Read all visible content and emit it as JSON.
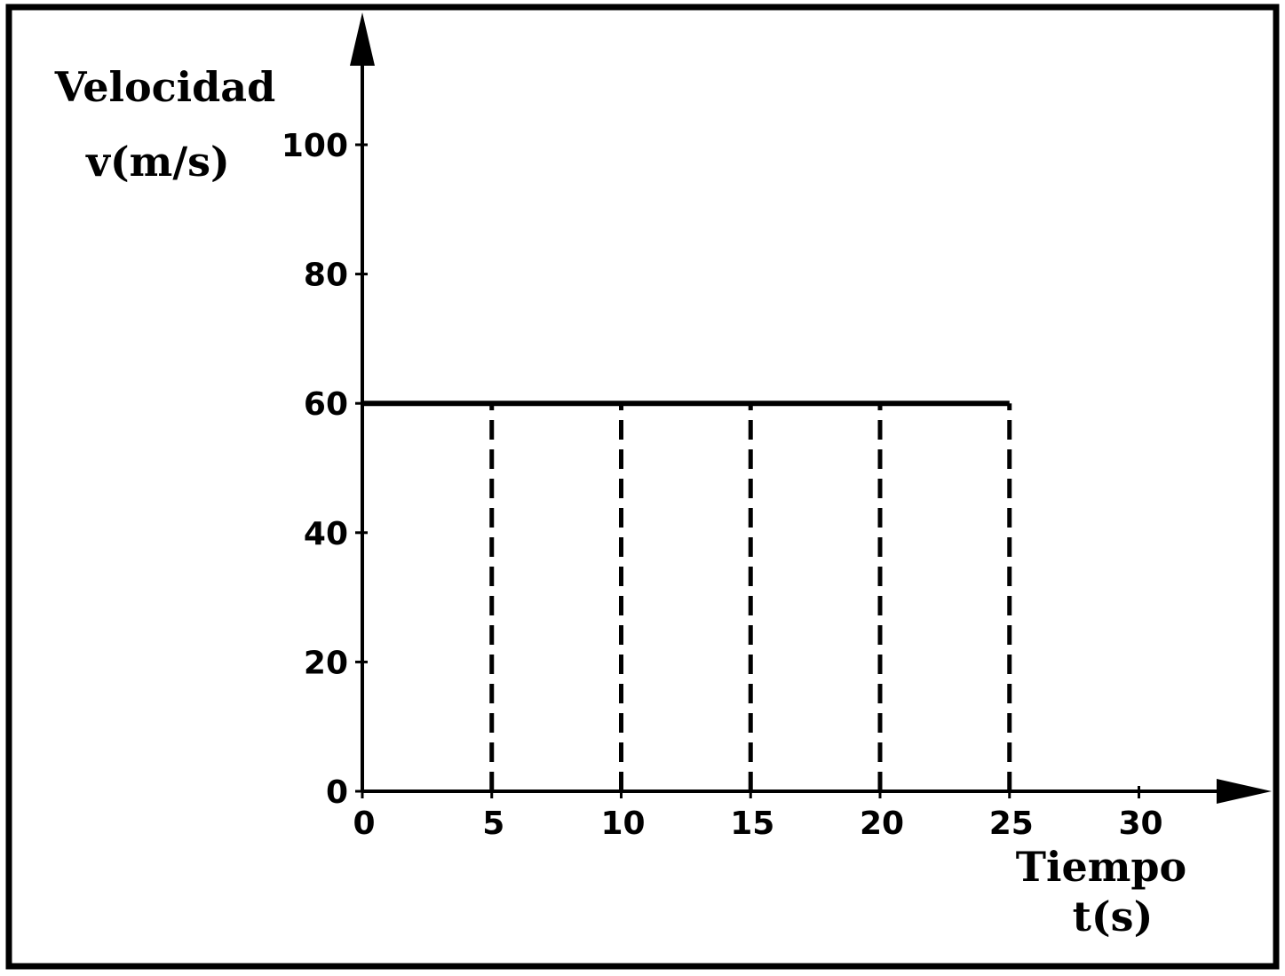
{
  "chart_data": {
    "type": "line",
    "ylabel_lines": [
      "Velocidad",
      "v(m/s)"
    ],
    "xlabel_lines": [
      "Tiempo",
      "t(s)"
    ],
    "x_ticks": [
      0,
      5,
      10,
      15,
      20,
      25,
      30
    ],
    "y_ticks": [
      0,
      20,
      40,
      60,
      80,
      100
    ],
    "xlim": [
      0,
      30
    ],
    "ylim": [
      0,
      100
    ],
    "grid": false,
    "series": [
      {
        "x": [
          0,
          25
        ],
        "y": [
          60,
          60
        ]
      }
    ],
    "dashed_drop_lines": {
      "x": [
        5,
        10,
        15,
        20,
        25
      ],
      "from_y": 0,
      "to_y": 60
    },
    "colors": {
      "line": "#000000",
      "background": "#ffffff"
    }
  }
}
